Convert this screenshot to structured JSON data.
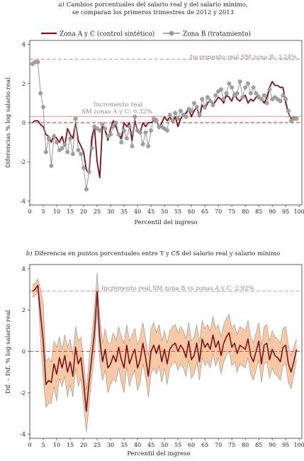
{
  "colors": {
    "series_a": "#7a1018",
    "series_b": "#8a8a8a",
    "ref_line": "#e8736b",
    "band_fill": "#f8c9a4",
    "band_edge": "#9a9a9a"
  },
  "chart_data": [
    {
      "type": "line",
      "title_prefix": "a)",
      "title_line1": "Cambios porcentuales del salario real y del salario mínimo,",
      "title_line2": "se comparan los primeros trimestres de 2012 y 2013",
      "xlabel": "Percentil del ingreso",
      "ylabel": "Diferencias % log salario real",
      "xlim": [
        0,
        101
      ],
      "ylim": [
        -4.2,
        4.2
      ],
      "xticks": [
        0,
        5,
        10,
        15,
        20,
        25,
        30,
        35,
        40,
        45,
        50,
        55,
        60,
        65,
        70,
        75,
        80,
        85,
        90,
        95,
        100
      ],
      "yticks": [
        4,
        2,
        0,
        -2,
        -4
      ],
      "legend": [
        "Zona A y C (control sintético)",
        "Zona B (tratamiento)"
      ],
      "ref_lines": [
        {
          "y": 3.24,
          "style": "dashed",
          "label": "Incremento real SM zona B: 3.24%"
        },
        {
          "y": 0.32,
          "style": "solid",
          "label_line1": "Incremento real",
          "label_line2": "SM zonas A y C: 0.32%"
        },
        {
          "y": 0,
          "style": "dashed"
        }
      ],
      "series": [
        {
          "name": "Zona A y C (control sintético)",
          "x": [
            1,
            2,
            3,
            4,
            5,
            6,
            7,
            8,
            9,
            10,
            11,
            12,
            13,
            14,
            15,
            16,
            17,
            18,
            19,
            20,
            21,
            22,
            23,
            24,
            25,
            26,
            27,
            28,
            29,
            30,
            31,
            32,
            33,
            34,
            35,
            36,
            37,
            38,
            39,
            40,
            41,
            42,
            43,
            44,
            45,
            46,
            47,
            48,
            49,
            50,
            51,
            52,
            53,
            54,
            55,
            56,
            57,
            58,
            59,
            60,
            61,
            62,
            63,
            64,
            65,
            66,
            67,
            68,
            69,
            70,
            71,
            72,
            73,
            74,
            75,
            76,
            77,
            78,
            79,
            80,
            81,
            82,
            83,
            84,
            85,
            86,
            87,
            88,
            89,
            90,
            91,
            92,
            93,
            94,
            95,
            96,
            97,
            98,
            99
          ],
          "values": [
            0.0,
            0.1,
            0.1,
            -0.1,
            -0.2,
            -0.6,
            -0.7,
            -1.0,
            -0.6,
            -0.8,
            -1.0,
            -0.7,
            -1.2,
            -0.3,
            -0.6,
            -0.8,
            0.0,
            -0.9,
            -1.2,
            -1.5,
            -2.4,
            -2.6,
            -0.8,
            -0.2,
            -2.0,
            -2.8,
            -0.1,
            -0.4,
            -0.9,
            -0.3,
            0.1,
            -0.2,
            -0.6,
            -0.8,
            0.0,
            -0.2,
            0.0,
            -0.9,
            0.1,
            -0.4,
            -0.5,
            0.0,
            -0.2,
            0.0,
            0.0,
            0.1,
            0.2,
            -0.3,
            0.0,
            0.3,
            0.1,
            0.3,
            0.0,
            0.3,
            -0.2,
            0.2,
            0.4,
            0.5,
            0.7,
            0.3,
            0.6,
            0.8,
            0.3,
            0.9,
            0.7,
            1.0,
            1.2,
            0.9,
            1.1,
            1.3,
            1.2,
            1.0,
            1.4,
            1.3,
            1.1,
            1.5,
            1.2,
            1.1,
            1.3,
            1.4,
            1.0,
            1.2,
            1.1,
            1.3,
            1.4,
            1.2,
            1.0,
            1.3,
            1.8,
            2.1,
            1.9,
            1.9,
            1.8,
            1.8,
            1.0,
            0.5,
            0.2,
            0.3,
            0.2
          ]
        },
        {
          "name": "Zona B (tratamiento)",
          "x": [
            1,
            2,
            3,
            4,
            5,
            6,
            7,
            8,
            9,
            10,
            11,
            12,
            13,
            14,
            15,
            16,
            17,
            18,
            19,
            20,
            21,
            22,
            23,
            24,
            25,
            26,
            27,
            28,
            29,
            30,
            31,
            32,
            33,
            34,
            35,
            36,
            37,
            38,
            39,
            40,
            41,
            42,
            43,
            44,
            45,
            46,
            47,
            48,
            49,
            50,
            51,
            52,
            53,
            54,
            55,
            56,
            57,
            58,
            59,
            60,
            61,
            62,
            63,
            64,
            65,
            66,
            67,
            68,
            69,
            70,
            71,
            72,
            73,
            74,
            75,
            76,
            77,
            78,
            79,
            80,
            81,
            82,
            83,
            84,
            85,
            86,
            87,
            88,
            89,
            90,
            91,
            92,
            93,
            94,
            95,
            96,
            97,
            98,
            99
          ],
          "values": [
            3.0,
            3.1,
            3.1,
            1.5,
            0.8,
            -1.5,
            -0.8,
            -2.2,
            -0.7,
            -1.0,
            -1.4,
            -1.3,
            -1.1,
            -1.5,
            -0.8,
            -1.6,
            0.2,
            -1.4,
            -1.6,
            -2.3,
            -3.4,
            -2.5,
            -1.3,
            -0.2,
            -0.3,
            -0.4,
            -0.1,
            -0.3,
            -0.7,
            -0.6,
            -0.2,
            0.0,
            -0.6,
            -1.0,
            -0.4,
            -0.8,
            -0.2,
            -1.2,
            0.3,
            -0.4,
            -0.5,
            -1.1,
            -0.5,
            -1.2,
            -0.4,
            0.2,
            0.1,
            -0.2,
            -0.2,
            -0.3,
            -0.4,
            0.4,
            0.1,
            0.5,
            0.2,
            0.6,
            0.4,
            0.3,
            0.7,
            0.6,
            1.0,
            0.8,
            0.4,
            1.2,
            0.8,
            1.3,
            1.1,
            0.9,
            1.4,
            1.6,
            1.7,
            1.2,
            1.5,
            2.0,
            1.8,
            1.4,
            1.5,
            2.1,
            1.3,
            1.8,
            2.0,
            1.5,
            1.8,
            1.5,
            1.3,
            1.2,
            1.4,
            1.0,
            1.7,
            1.2,
            1.3,
            1.2,
            1.1,
            1.4,
            1.2,
            0.6,
            0.1,
            0.2,
            0.2
          ]
        }
      ]
    },
    {
      "type": "line",
      "title_prefix": "b)",
      "title": "Diferencia en puntos porcentuales entre T y CS del salario real y salario mínimo",
      "xlabel": "Percentil del ingreso",
      "ylabel": "Dif. – Dif. % log salario real",
      "xlim": [
        0,
        101
      ],
      "ylim": [
        -4.2,
        4.2
      ],
      "xticks": [
        0,
        5,
        10,
        15,
        20,
        25,
        30,
        35,
        40,
        45,
        50,
        55,
        60,
        65,
        70,
        75,
        80,
        85,
        90,
        95,
        100
      ],
      "yticks": [
        4,
        2,
        0,
        -2,
        -4
      ],
      "ref_lines": [
        {
          "y": 2.92,
          "style": "dashed",
          "label": "Incremento real SM zona B vs zonas A y C: 2.92%"
        },
        {
          "y": 0,
          "style": "dashed"
        }
      ],
      "series": [
        {
          "name": "Dif. – Dif.",
          "x": [
            1,
            2,
            3,
            4,
            5,
            6,
            7,
            8,
            9,
            10,
            11,
            12,
            13,
            14,
            15,
            16,
            17,
            18,
            19,
            20,
            21,
            22,
            23,
            24,
            25,
            26,
            27,
            28,
            29,
            30,
            31,
            32,
            33,
            34,
            35,
            36,
            37,
            38,
            39,
            40,
            41,
            42,
            43,
            44,
            45,
            46,
            47,
            48,
            49,
            50,
            51,
            52,
            53,
            54,
            55,
            56,
            57,
            58,
            59,
            60,
            61,
            62,
            63,
            64,
            65,
            66,
            67,
            68,
            69,
            70,
            71,
            72,
            73,
            74,
            75,
            76,
            77,
            78,
            79,
            80,
            81,
            82,
            83,
            84,
            85,
            86,
            87,
            88,
            89,
            90,
            91,
            92,
            93,
            94,
            95,
            96,
            97,
            98,
            99
          ],
          "values": [
            2.9,
            3.0,
            3.2,
            1.8,
            0.5,
            -1.6,
            -1.4,
            -1.5,
            -0.6,
            -1.1,
            -0.3,
            -0.8,
            -0.2,
            -1.0,
            -0.5,
            -1.2,
            0.2,
            -0.6,
            -0.3,
            -1.5,
            -2.9,
            -1.5,
            -0.3,
            0.9,
            2.9,
            0.6,
            -0.5,
            0.1,
            -0.8,
            -0.6,
            -0.2,
            -0.5,
            0.2,
            -0.4,
            -0.8,
            0.3,
            -0.6,
            -0.2,
            0.1,
            -0.8,
            -0.4,
            0.4,
            -0.3,
            -1.2,
            0.0,
            0.3,
            -0.1,
            0.3,
            -0.5,
            0.1,
            -0.6,
            0.1,
            0.3,
            0.4,
            0.0,
            0.3,
            0.1,
            -0.3,
            0.5,
            -0.4,
            -0.2,
            0.4,
            -0.5,
            0.6,
            0.2,
            0.4,
            0.1,
            0.8,
            0.2,
            0.5,
            -0.2,
            0.4,
            0.7,
            0.9,
            0.2,
            0.4,
            -0.1,
            0.3,
            0.2,
            0.1,
            0.6,
            -0.2,
            -0.5,
            0.0,
            0.5,
            -0.6,
            0.3,
            0.4,
            -0.4,
            0.1,
            -0.2,
            -0.3,
            -0.5,
            0.2,
            0.3,
            -0.6,
            -1.0,
            -0.5,
            0.1
          ],
          "band_halfwidth": [
            0.3,
            0.3,
            0.3,
            1.2,
            1.8,
            1.1,
            1.1,
            1.0,
            1.1,
            1.3,
            1.0,
            0.9,
            1.0,
            1.2,
            1.1,
            1.0,
            1.0,
            1.1,
            1.0,
            1.1,
            1.0,
            1.1,
            1.0,
            1.1,
            0.9,
            1.1,
            0.9,
            1.0,
            1.2,
            1.0,
            1.1,
            1.0,
            1.0,
            1.1,
            1.2,
            1.0,
            1.1,
            1.0,
            1.0,
            1.1,
            1.1,
            1.0,
            0.9,
            1.0,
            1.1,
            1.1,
            1.0,
            1.0,
            1.0,
            0.9,
            1.0,
            0.9,
            0.9,
            0.9,
            0.9,
            0.9,
            0.9,
            0.9,
            0.9,
            0.9,
            0.9,
            0.9,
            0.9,
            0.9,
            0.9,
            0.9,
            0.9,
            0.9,
            0.9,
            0.8,
            0.9,
            0.9,
            0.9,
            0.9,
            0.9,
            0.9,
            0.9,
            0.9,
            0.9,
            0.9,
            0.9,
            0.9,
            0.9,
            0.9,
            0.9,
            0.9,
            0.9,
            0.9,
            0.9,
            0.9,
            0.9,
            0.9,
            0.9,
            0.9,
            0.9,
            0.9,
            0.8,
            0.7,
            0.5
          ]
        }
      ]
    }
  ]
}
